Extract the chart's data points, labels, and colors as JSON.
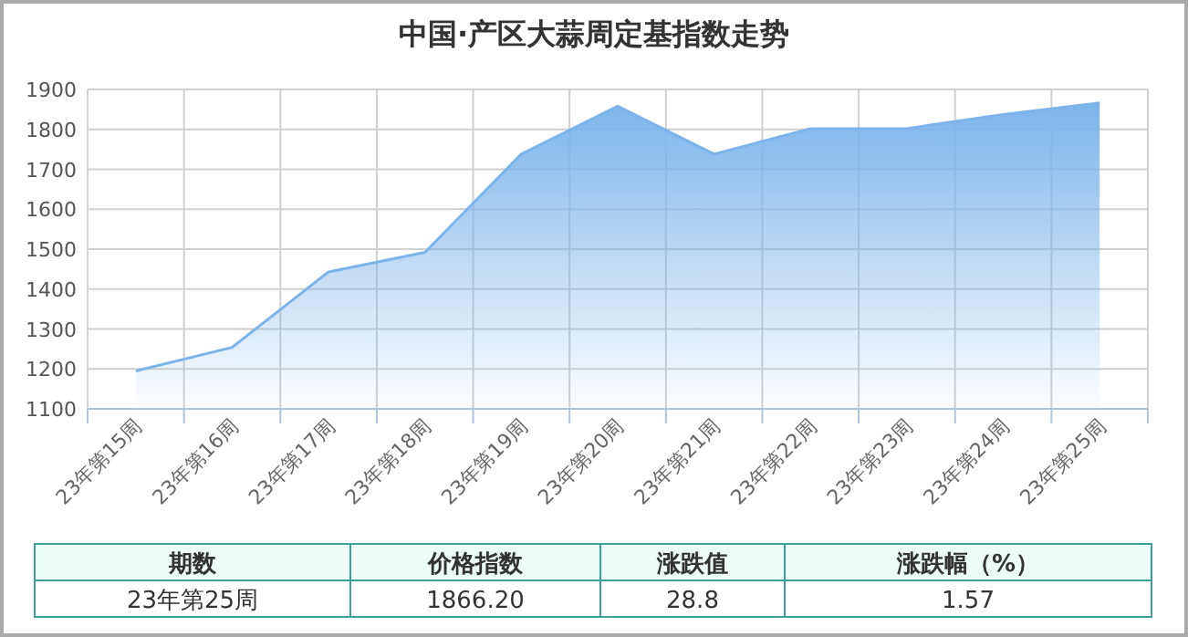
{
  "chart_data": {
    "type": "area",
    "title": "中国·产区大蒜周定基指数走势",
    "categories": [
      "23年第15周",
      "23年第16周",
      "23年第17周",
      "23年第18周",
      "23年第19周",
      "23年第20周",
      "23年第21周",
      "23年第22周",
      "23年第23周",
      "23年第24周",
      "23年第25周"
    ],
    "series": [
      {
        "color": "#7cb4ea",
        "values": [
          1195,
          1254,
          1443,
          1492,
          1738,
          1858,
          1738,
          1802,
          1802,
          1837.4,
          1866.2
        ]
      }
    ],
    "ylim": [
      1100,
      1900
    ],
    "yticks": [
      1100,
      1200,
      1300,
      1400,
      1500,
      1600,
      1700,
      1800,
      1900
    ],
    "grid": true,
    "annotations": [
      "期数",
      "价格指数",
      "涨跌值",
      "涨跌幅（%）",
      "23年第25周",
      "1866.20",
      "28.8",
      "1.57"
    ]
  }
}
